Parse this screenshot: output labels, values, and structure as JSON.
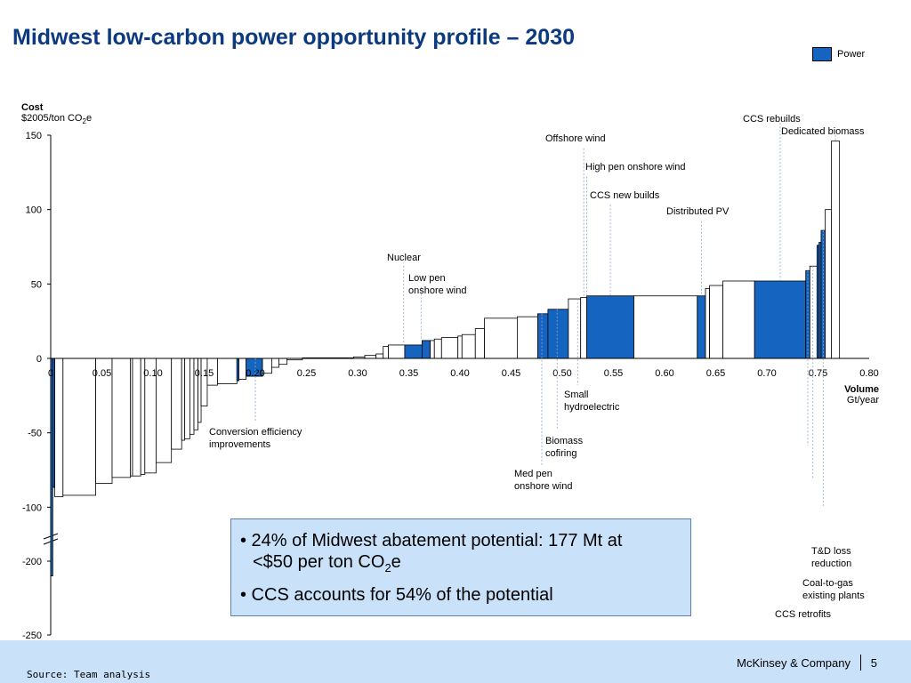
{
  "header": {
    "title": "Midwest low-carbon power opportunity profile – 2030"
  },
  "legend": {
    "label": "Power",
    "color": "#1565c0"
  },
  "axes": {
    "y_title": "Cost",
    "y_unit": "$2005/ton CO",
    "y_unit_sub": "2",
    "y_unit_tail": "e",
    "x_title": "Volume",
    "x_unit": "Gt/year"
  },
  "callout": {
    "line1_a": "• 24% of Midwest abatement potential: 177 Mt at",
    "line1_b": "<$50 per ton CO",
    "line1_sub": "2",
    "line1_tail": "e",
    "line2": "• CCS accounts for 54% of the potential"
  },
  "footer": {
    "source": "Source: Team analysis",
    "brand": "McKinsey & Company",
    "page": "5"
  },
  "chart_data": {
    "type": "bar",
    "subtype": "marginal-abatement-cost-curve",
    "x_ticks": [
      "0",
      "0.05",
      "0.10",
      "0.15",
      "0.20",
      "0.25",
      "0.30",
      "0.35",
      "0.40",
      "0.45",
      "0.50",
      "0.55",
      "0.60",
      "0.65",
      "0.70",
      "0.75",
      "0.80"
    ],
    "y_ticks": [
      "150",
      "100",
      "50",
      "0",
      "-50",
      "-100",
      "-200",
      "-250"
    ],
    "xlim": [
      0,
      0.8
    ],
    "ylim_upper": [
      -100,
      150
    ],
    "ylim_lower": [
      -250,
      -200
    ],
    "axis_break": true,
    "colors": {
      "power": "#1565c0",
      "other": "#ffffff"
    },
    "bars": [
      {
        "x0": 0.0,
        "x1": 0.002,
        "y": -210,
        "power": true
      },
      {
        "x0": 0.002,
        "x1": 0.004,
        "y": -150,
        "power": true
      },
      {
        "x0": 0.004,
        "x1": 0.012,
        "y": -93,
        "power": false
      },
      {
        "x0": 0.012,
        "x1": 0.044,
        "y": -92,
        "power": false
      },
      {
        "x0": 0.044,
        "x1": 0.06,
        "y": -84,
        "power": false
      },
      {
        "x0": 0.06,
        "x1": 0.078,
        "y": -80,
        "power": false
      },
      {
        "x0": 0.078,
        "x1": 0.08,
        "y": -79,
        "power": false
      },
      {
        "x0": 0.08,
        "x1": 0.088,
        "y": -79,
        "power": false
      },
      {
        "x0": 0.088,
        "x1": 0.092,
        "y": -78,
        "power": false
      },
      {
        "x0": 0.092,
        "x1": 0.103,
        "y": -77,
        "power": false
      },
      {
        "x0": 0.103,
        "x1": 0.118,
        "y": -70,
        "power": false
      },
      {
        "x0": 0.118,
        "x1": 0.128,
        "y": -61,
        "power": false
      },
      {
        "x0": 0.128,
        "x1": 0.131,
        "y": -55,
        "power": false
      },
      {
        "x0": 0.131,
        "x1": 0.136,
        "y": -54,
        "power": false
      },
      {
        "x0": 0.136,
        "x1": 0.14,
        "y": -51,
        "power": false
      },
      {
        "x0": 0.14,
        "x1": 0.144,
        "y": -48,
        "power": false
      },
      {
        "x0": 0.144,
        "x1": 0.147,
        "y": -43,
        "power": false
      },
      {
        "x0": 0.147,
        "x1": 0.153,
        "y": -32,
        "power": false
      },
      {
        "x0": 0.153,
        "x1": 0.163,
        "y": -18,
        "power": false
      },
      {
        "x0": 0.163,
        "x1": 0.182,
        "y": -17,
        "power": false
      },
      {
        "x0": 0.182,
        "x1": 0.184,
        "y": -15,
        "power": true
      },
      {
        "x0": 0.184,
        "x1": 0.191,
        "y": -14,
        "power": false
      },
      {
        "x0": 0.191,
        "x1": 0.207,
        "y": -12,
        "power": true
      },
      {
        "x0": 0.207,
        "x1": 0.216,
        "y": -10,
        "power": false
      },
      {
        "x0": 0.216,
        "x1": 0.223,
        "y": -6,
        "power": false
      },
      {
        "x0": 0.223,
        "x1": 0.231,
        "y": -4,
        "power": false
      },
      {
        "x0": 0.231,
        "x1": 0.246,
        "y": -1,
        "power": false
      },
      {
        "x0": 0.246,
        "x1": 0.296,
        "y": 0.4,
        "power": false
      },
      {
        "x0": 0.296,
        "x1": 0.307,
        "y": 1,
        "power": false
      },
      {
        "x0": 0.307,
        "x1": 0.318,
        "y": 2,
        "power": false
      },
      {
        "x0": 0.318,
        "x1": 0.325,
        "y": 3,
        "power": false
      },
      {
        "x0": 0.325,
        "x1": 0.33,
        "y": 8,
        "power": false
      },
      {
        "x0": 0.33,
        "x1": 0.346,
        "y": 9,
        "power": false
      },
      {
        "x0": 0.346,
        "x1": 0.363,
        "y": 9,
        "power": true
      },
      {
        "x0": 0.363,
        "x1": 0.371,
        "y": 12,
        "power": true
      },
      {
        "x0": 0.371,
        "x1": 0.375,
        "y": 12,
        "power": false
      },
      {
        "x0": 0.375,
        "x1": 0.382,
        "y": 13,
        "power": false
      },
      {
        "x0": 0.382,
        "x1": 0.398,
        "y": 14,
        "power": false
      },
      {
        "x0": 0.398,
        "x1": 0.402,
        "y": 15,
        "power": false
      },
      {
        "x0": 0.402,
        "x1": 0.415,
        "y": 16,
        "power": false
      },
      {
        "x0": 0.415,
        "x1": 0.424,
        "y": 20,
        "power": false
      },
      {
        "x0": 0.424,
        "x1": 0.456,
        "y": 27,
        "power": false
      },
      {
        "x0": 0.456,
        "x1": 0.476,
        "y": 28,
        "power": false
      },
      {
        "x0": 0.476,
        "x1": 0.486,
        "y": 30,
        "power": true
      },
      {
        "x0": 0.486,
        "x1": 0.506,
        "y": 33,
        "power": true
      },
      {
        "x0": 0.506,
        "x1": 0.518,
        "y": 40,
        "power": false
      },
      {
        "x0": 0.518,
        "x1": 0.524,
        "y": 41,
        "power": false
      },
      {
        "x0": 0.524,
        "x1": 0.57,
        "y": 42,
        "power": true
      },
      {
        "x0": 0.57,
        "x1": 0.632,
        "y": 42,
        "power": false
      },
      {
        "x0": 0.632,
        "x1": 0.64,
        "y": 42,
        "power": true
      },
      {
        "x0": 0.64,
        "x1": 0.644,
        "y": 47,
        "power": false
      },
      {
        "x0": 0.644,
        "x1": 0.657,
        "y": 49,
        "power": false
      },
      {
        "x0": 0.657,
        "x1": 0.688,
        "y": 52,
        "power": false
      },
      {
        "x0": 0.688,
        "x1": 0.738,
        "y": 52,
        "power": true
      },
      {
        "x0": 0.738,
        "x1": 0.742,
        "y": 59,
        "power": true
      },
      {
        "x0": 0.742,
        "x1": 0.749,
        "y": 62,
        "power": false
      },
      {
        "x0": 0.749,
        "x1": 0.751,
        "y": 76,
        "power": true
      },
      {
        "x0": 0.751,
        "x1": 0.753,
        "y": 78,
        "power": true
      },
      {
        "x0": 0.753,
        "x1": 0.757,
        "y": 86,
        "power": true
      },
      {
        "x0": 0.757,
        "x1": 0.763,
        "y": 100,
        "power": false
      },
      {
        "x0": 0.763,
        "x1": 0.771,
        "y": 146,
        "power": false
      }
    ],
    "annotations": [
      {
        "text": "Conversion efficiency improvements",
        "x": 0.2,
        "y": -12,
        "ly": -50,
        "side": "below"
      },
      {
        "text": "Nuclear",
        "x": 0.345,
        "y": 9,
        "ly": 67,
        "side": "above"
      },
      {
        "text": "Low pen onshore wind",
        "x": 0.362,
        "y": 12,
        "ly": 53,
        "side": "above"
      },
      {
        "text": "Small hydroelectric",
        "x": 0.515,
        "y": 40,
        "ly": -25,
        "side": "below"
      },
      {
        "text": "Biomass cofiring",
        "x": 0.495,
        "y": 33,
        "ly": -55,
        "side": "below"
      },
      {
        "text": "Med pen onshore wind",
        "x": 0.48,
        "y": 30,
        "ly": -79,
        "side": "below"
      },
      {
        "text": "Offshore wind",
        "x": 0.521,
        "y": 41,
        "ly": 146,
        "side": "above"
      },
      {
        "text": "High pen onshore wind",
        "x": 0.524,
        "y": 41,
        "ly": 127,
        "side": "above"
      },
      {
        "text": "CCS new builds",
        "x": 0.547,
        "y": 42,
        "ly": 108,
        "side": "above"
      },
      {
        "text": "Distributed PV",
        "x": 0.636,
        "y": 42,
        "ly": 97,
        "side": "above"
      },
      {
        "text": "CCS rebuilds",
        "x": 0.713,
        "y": 52,
        "ly": 163,
        "side": "above"
      },
      {
        "text": "Dedicated biomass",
        "x": 0.767,
        "y": 146,
        "ly": 155,
        "side": "above"
      },
      {
        "text": "T&D loss reduction",
        "x": 0.74,
        "y": 59,
        "ly": -129,
        "side": "below"
      },
      {
        "text": "Coal-to-gas existing plants",
        "x": 0.745,
        "y": 62,
        "ly": -151,
        "side": "below"
      },
      {
        "text": "CCS retrofits",
        "x": 0.755,
        "y": 86,
        "ly": -171,
        "side": "below"
      }
    ]
  }
}
